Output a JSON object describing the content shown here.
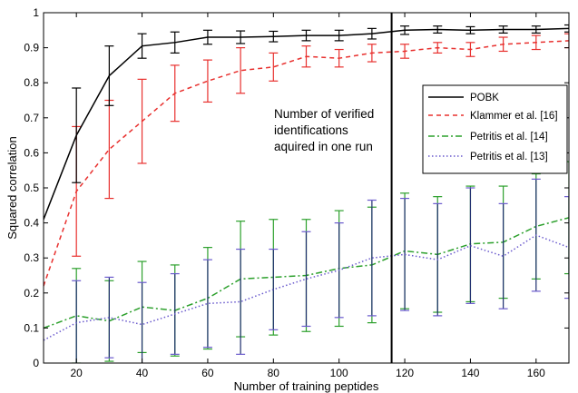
{
  "chart_data": {
    "type": "line",
    "xlabel": "Number of training peptides",
    "ylabel": "Squared correlation",
    "xlim": [
      10,
      170
    ],
    "ylim": [
      0,
      1
    ],
    "xticks": [
      20,
      40,
      60,
      80,
      100,
      120,
      140,
      160
    ],
    "yticks": [
      0,
      0.1,
      0.2,
      0.3,
      0.4,
      0.5,
      0.6,
      0.7,
      0.8,
      0.9,
      1
    ],
    "grid": false,
    "legend_position": "right",
    "annotation": {
      "lines": [
        "Number of verified",
        "identifications",
        "aquired in one run"
      ],
      "vline_x": 116
    },
    "series": [
      {
        "name": "POBK",
        "color": "#000000",
        "style": "solid",
        "x": [
          10,
          20,
          30,
          40,
          50,
          60,
          70,
          80,
          90,
          100,
          110,
          120,
          130,
          140,
          150,
          160,
          170
        ],
        "y": [
          0.41,
          0.65,
          0.82,
          0.905,
          0.915,
          0.93,
          0.93,
          0.932,
          0.935,
          0.935,
          0.94,
          0.95,
          0.952,
          0.95,
          0.952,
          0.952,
          0.955
        ],
        "err": [
          0.0,
          0.135,
          0.085,
          0.035,
          0.03,
          0.02,
          0.018,
          0.015,
          0.015,
          0.015,
          0.015,
          0.012,
          0.01,
          0.01,
          0.01,
          0.01,
          0.01
        ]
      },
      {
        "name": "Klammer et al. [16]",
        "color": "#e8302e",
        "style": "dashed",
        "x": [
          10,
          20,
          30,
          40,
          50,
          60,
          70,
          80,
          90,
          100,
          110,
          120,
          130,
          140,
          150,
          160,
          170
        ],
        "y": [
          0.22,
          0.49,
          0.61,
          0.69,
          0.77,
          0.805,
          0.835,
          0.845,
          0.875,
          0.87,
          0.885,
          0.89,
          0.9,
          0.895,
          0.91,
          0.915,
          0.92
        ],
        "err": [
          0.0,
          0.185,
          0.14,
          0.12,
          0.08,
          0.06,
          0.065,
          0.04,
          0.03,
          0.025,
          0.025,
          0.02,
          0.015,
          0.02,
          0.02,
          0.02,
          0.02
        ]
      },
      {
        "name": "Petritis et al. [14]",
        "color": "#2ca02c",
        "style": "dashdot",
        "x": [
          10,
          20,
          30,
          40,
          50,
          60,
          70,
          80,
          90,
          100,
          110,
          120,
          130,
          140,
          150,
          160,
          170
        ],
        "y": [
          0.1,
          0.135,
          0.12,
          0.16,
          0.15,
          0.185,
          0.24,
          0.245,
          0.25,
          0.27,
          0.28,
          0.32,
          0.31,
          0.34,
          0.345,
          0.39,
          0.415
        ],
        "err": [
          0.0,
          0.135,
          0.115,
          0.13,
          0.13,
          0.145,
          0.165,
          0.165,
          0.16,
          0.165,
          0.165,
          0.165,
          0.165,
          0.165,
          0.16,
          0.15,
          0.16
        ]
      },
      {
        "name": "Petritis et al. [13]",
        "color": "#6a5acd",
        "style": "dotted",
        "x": [
          10,
          20,
          30,
          40,
          50,
          60,
          70,
          80,
          90,
          100,
          110,
          120,
          130,
          140,
          150,
          160,
          170
        ],
        "y": [
          0.065,
          0.115,
          0.13,
          0.11,
          0.14,
          0.17,
          0.175,
          0.21,
          0.24,
          0.265,
          0.3,
          0.31,
          0.295,
          0.335,
          0.305,
          0.365,
          0.33
        ],
        "err": [
          0.0,
          0.12,
          0.115,
          0.12,
          0.115,
          0.125,
          0.15,
          0.115,
          0.135,
          0.135,
          0.165,
          0.16,
          0.16,
          0.165,
          0.15,
          0.16,
          0.145
        ]
      }
    ]
  }
}
